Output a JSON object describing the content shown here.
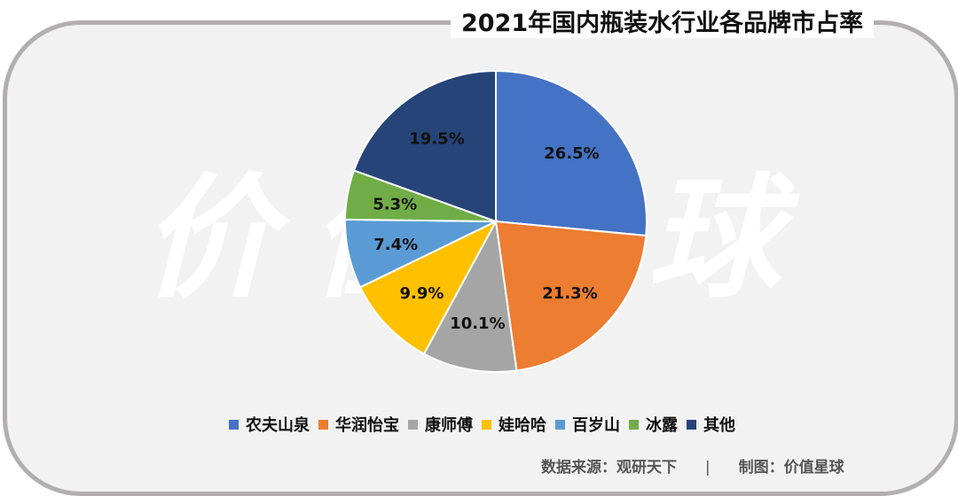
{
  "title": "2021年国内瓶装水行业各品牌市占率",
  "watermark": "价值星球",
  "footer": {
    "source": "数据来源：观研天下",
    "separator": "|",
    "credit": "制图：价值星球"
  },
  "chart_data": {
    "type": "pie",
    "title": "2021年国内瓶装水行业各品牌市占率",
    "categories": [
      "农夫山泉",
      "华润怡宝",
      "康师傅",
      "娃哈哈",
      "百岁山",
      "冰露",
      "其他"
    ],
    "values": [
      26.5,
      21.3,
      10.1,
      9.9,
      7.4,
      5.3,
      19.5
    ],
    "labels": [
      "26.5%",
      "21.3%",
      "10.1%",
      "9.9%",
      "7.4%",
      "5.3%",
      "19.5%"
    ],
    "colors": [
      "#4472c4",
      "#ed7d31",
      "#a5a5a5",
      "#ffc000",
      "#5b9bd5",
      "#70ad47",
      "#264478"
    ],
    "unit": "%",
    "start_angle": "12 o'clock, clockwise",
    "legend_position": "bottom"
  }
}
